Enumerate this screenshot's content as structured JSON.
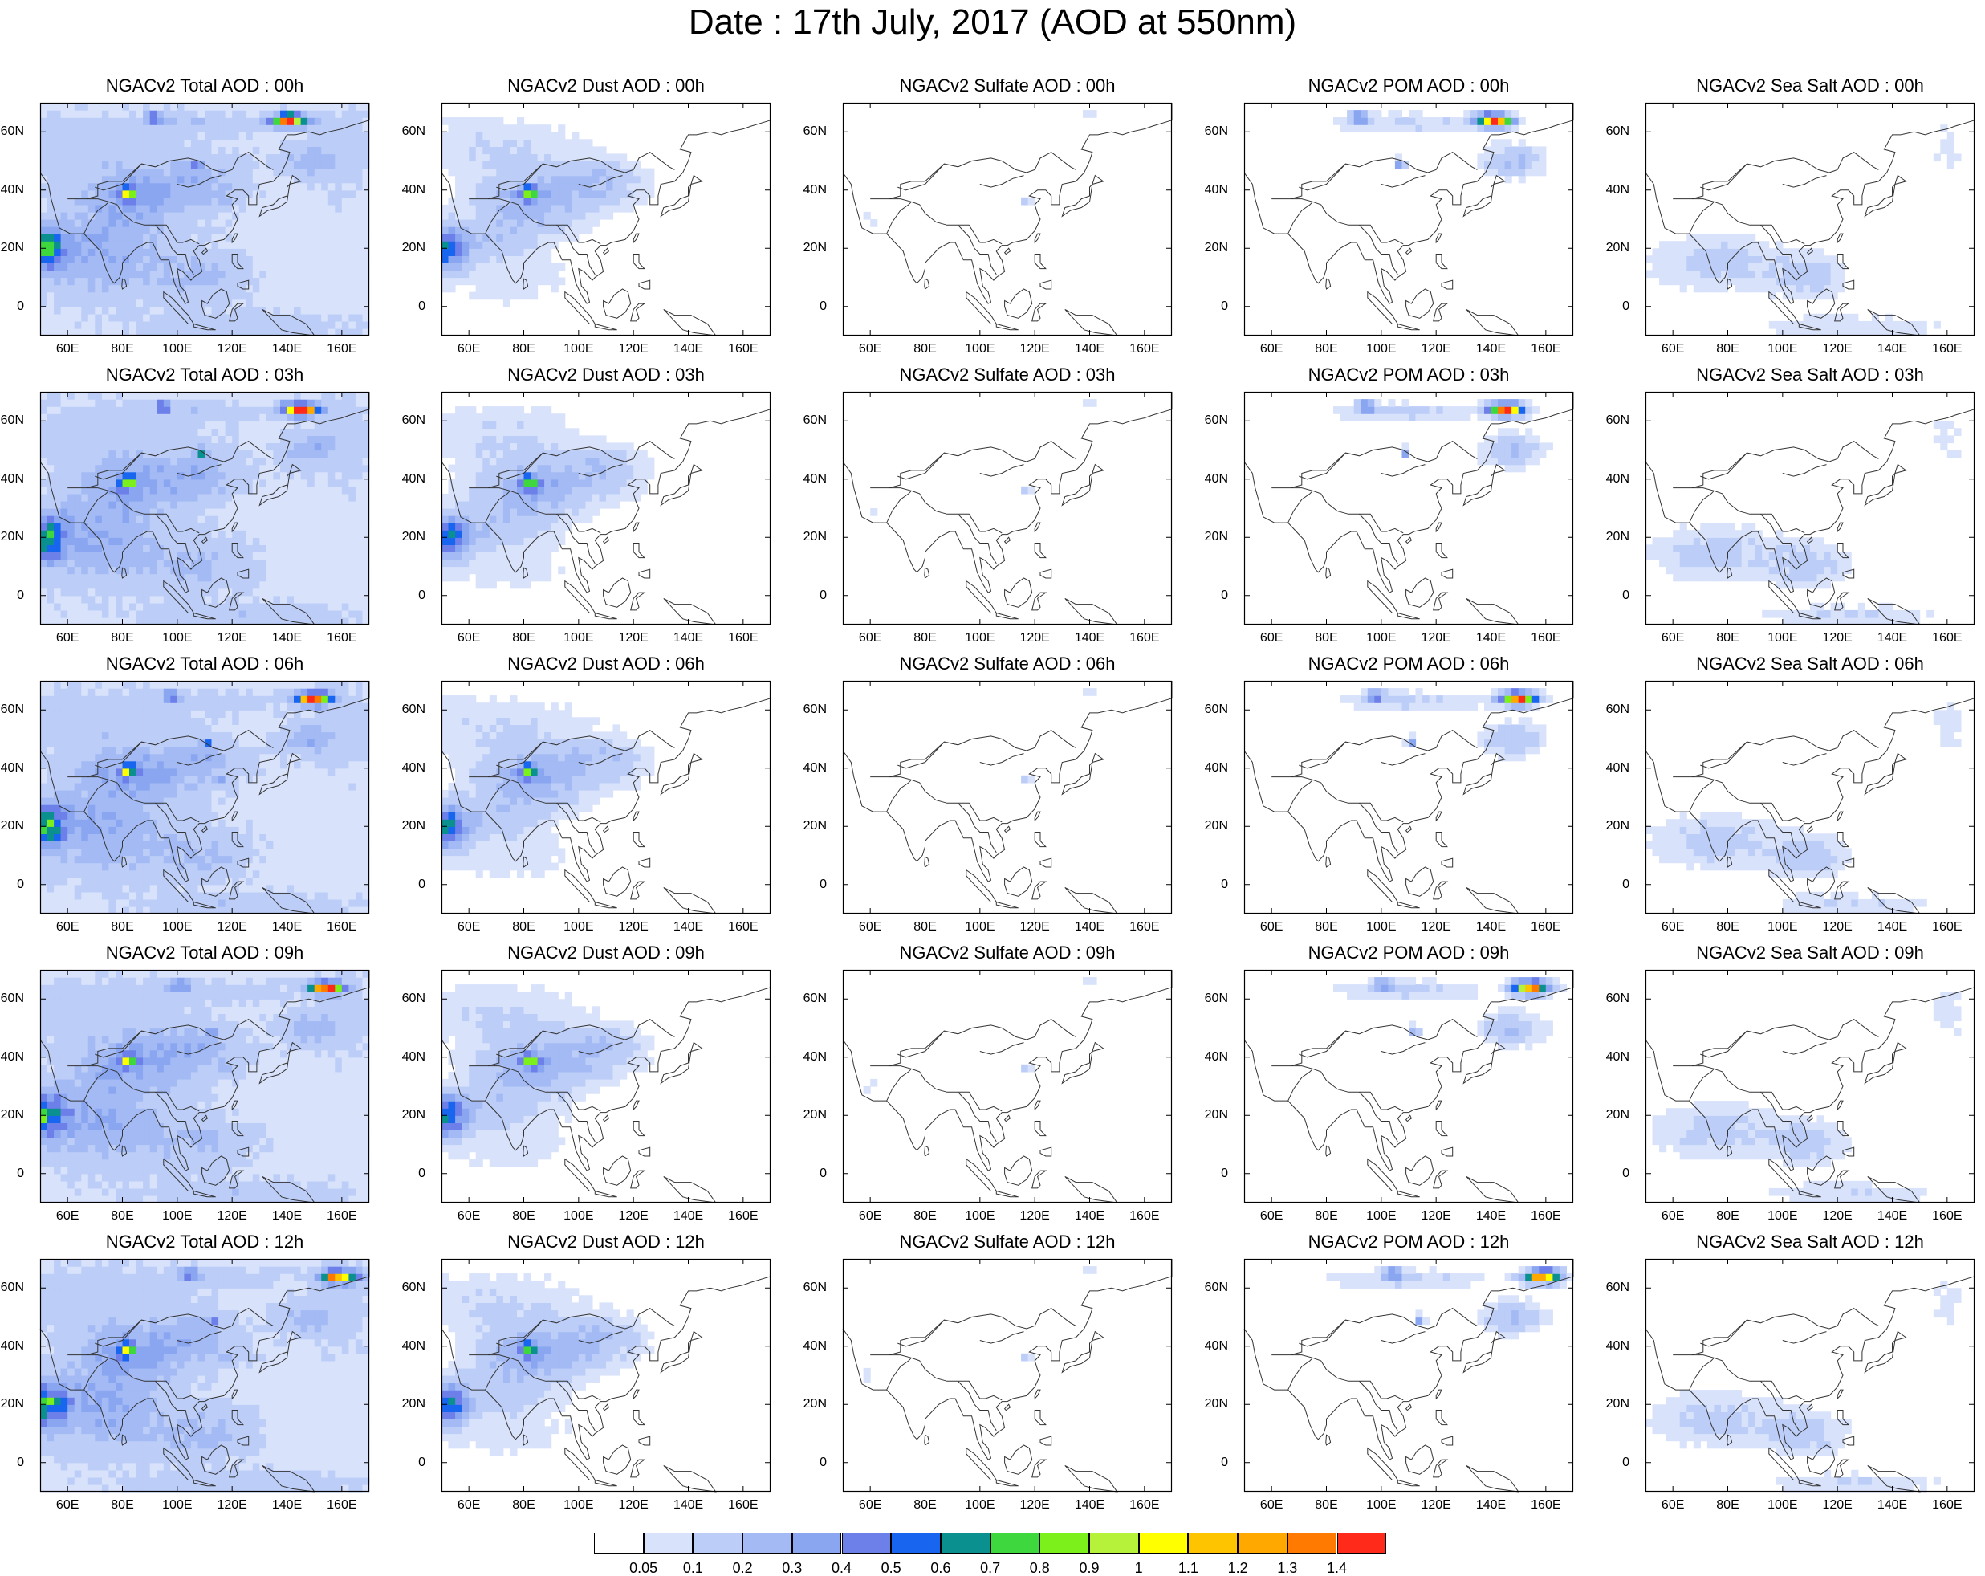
{
  "title": "Date : 17th July, 2017 (AOD at 550nm)",
  "x_ticks": [
    "60E",
    "80E",
    "100E",
    "120E",
    "140E",
    "160E"
  ],
  "y_ticks": [
    "60N",
    "40N",
    "20N",
    "0"
  ],
  "panels": [
    [
      "NGACv2 Total AOD : 00h",
      "NGACv2 Dust AOD : 00h",
      "NGACv2 Sulfate AOD : 00h",
      "NGACv2 POM AOD : 00h",
      "NGACv2 Sea Salt AOD : 00h"
    ],
    [
      "NGACv2 Total AOD : 03h",
      "NGACv2 Dust AOD : 03h",
      "NGACv2 Sulfate AOD : 03h",
      "NGACv2 POM AOD : 03h",
      "NGACv2 Sea Salt AOD : 03h"
    ],
    [
      "NGACv2 Total AOD : 06h",
      "NGACv2 Dust AOD : 06h",
      "NGACv2 Sulfate AOD : 06h",
      "NGACv2 POM AOD : 06h",
      "NGACv2 Sea Salt AOD : 06h"
    ],
    [
      "NGACv2 Total AOD : 09h",
      "NGACv2 Dust AOD : 09h",
      "NGACv2 Sulfate AOD : 09h",
      "NGACv2 POM AOD : 09h",
      "NGACv2 Sea Salt  AOD : 09h"
    ],
    [
      "NGACv2 Total AOD  : 12h",
      "NGACv2 Dust AOD : 12h",
      "NGACv2 Sulfate AOD : 12h",
      "NGACv2 POM  AOD : 12h",
      "NGACv2 Sea Salt  AOD : 12h"
    ]
  ],
  "colorbar": {
    "colors": [
      "#ffffff",
      "#d8e2fb",
      "#bccdf7",
      "#a3baf4",
      "#8aa6f1",
      "#6d7fe8",
      "#1866f0",
      "#0b9090",
      "#3ed83e",
      "#7cf01a",
      "#b6f23a",
      "#ffff00",
      "#ffc400",
      "#ffa800",
      "#ff7a00",
      "#ff2a1a"
    ],
    "labels": [
      "0.05",
      "0.1",
      "0.2",
      "0.3",
      "0.4",
      "0.5",
      "0.6",
      "0.7",
      "0.8",
      "0.9",
      "1",
      "1.1",
      "1.2",
      "1.3",
      "1.4"
    ]
  }
}
